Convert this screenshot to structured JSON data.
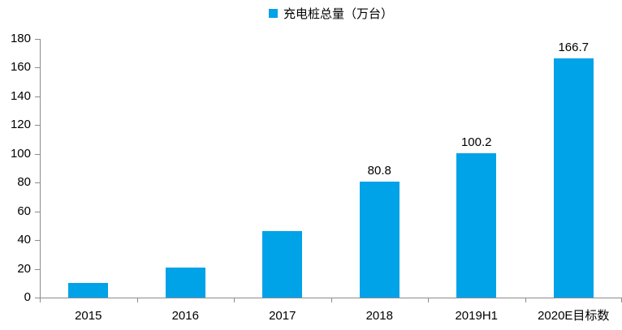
{
  "chart_data": {
    "type": "bar",
    "title": "",
    "legend": "充电桩总量（万台）",
    "legend_position": "top-center",
    "categories": [
      "2015",
      "2016",
      "2017",
      "2018",
      "2019H1",
      "2020E目标数"
    ],
    "series": [
      {
        "name": "充电桩总量（万台）",
        "values": [
          10.4,
          20.6,
          46,
          80.8,
          100.2,
          166.7
        ]
      }
    ],
    "data_labels": [
      "",
      "",
      "",
      "80.8",
      "100.2",
      "166.7"
    ],
    "xlabel": "",
    "ylabel": "",
    "ylim": [
      0,
      180
    ],
    "ytick_step": 20,
    "yticks": [
      0,
      20,
      40,
      60,
      80,
      100,
      120,
      140,
      160,
      180
    ],
    "grid": false
  },
  "colors": {
    "bar": "#00A2E8",
    "axis": "#8C8C8C",
    "text": "#000000",
    "background": "#FFFFFF"
  }
}
